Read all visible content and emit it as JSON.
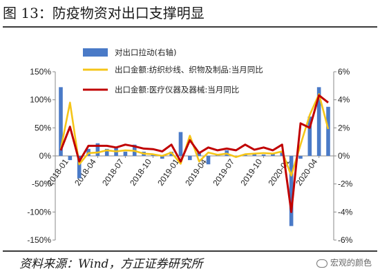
{
  "figure_title": "图 13：防疫物资对出口支撑明显",
  "source_note": "资料来源：Wind，方正证券研究所",
  "watermark": "宏观的颜色",
  "colors": {
    "bars": "#4a7ac7",
    "textile": "#f5c518",
    "medical": "#c00000"
  },
  "chart_data": {
    "type": "bar+line",
    "legend": [
      {
        "key": "bars",
        "label": "对出口拉动(右轴)"
      },
      {
        "key": "textile",
        "label": "出口金额:纺织纱线、织物及制品:当月同比"
      },
      {
        "key": "medical",
        "label": "出口金额:医疗仪器及器械:当月同比"
      }
    ],
    "legend_placement": "top",
    "left_axis": {
      "ylim": [
        -150,
        150
      ],
      "ticks": [
        "150%",
        "100%",
        "50%",
        "0%",
        "-50%",
        "-100%",
        "-150%"
      ]
    },
    "right_axis": {
      "ylim": [
        -6,
        6
      ],
      "ticks": [
        "6%",
        "4%",
        "2%",
        "0%",
        "-2%",
        "-4%",
        "-6%"
      ]
    },
    "x_ticks": [
      "2018-01",
      "2018-04",
      "2018-07",
      "2018-10",
      "2019-01",
      "2019-04",
      "2019-07",
      "2019-10",
      "2020-01",
      "2020-04"
    ],
    "months": [
      "2017-12",
      "2018-01",
      "2018-02",
      "2018-03",
      "2018-04",
      "2018-05",
      "2018-06",
      "2018-07",
      "2018-08",
      "2018-09",
      "2018-10",
      "2018-11",
      "2018-12",
      "2019-01",
      "2019-02",
      "2019-03",
      "2019-04",
      "2019-05",
      "2019-06",
      "2019-07",
      "2019-08",
      "2019-09",
      "2019-10",
      "2019-11",
      "2019-12",
      "2020-01",
      "2020-02",
      "2020-03",
      "2020-04",
      "2020-05"
    ],
    "series": [
      {
        "name": "对出口拉动(右轴)",
        "axis": "right",
        "render": "bar",
        "values": [
          4.9,
          -0.3,
          -1.6,
          0.5,
          0.9,
          0.5,
          0.6,
          0.3,
          0.8,
          0.3,
          0.1,
          -0.2,
          0.3,
          1.7,
          -0.3,
          0.3,
          -0.6,
          0.1,
          0.4,
          -0.1,
          0.1,
          0.2,
          0.1,
          0.2,
          0.3,
          -5.0,
          -0.2,
          2.8,
          4.9,
          3.5
        ]
      },
      {
        "name": "出口金额:纺织纱线、织物及制品:当月同比",
        "axis": "left",
        "render": "line",
        "values": [
          12,
          95,
          -15,
          5,
          6,
          10,
          8,
          10,
          9,
          4,
          3,
          0,
          6,
          -14,
          36,
          -10,
          6,
          2,
          4,
          -2,
          3,
          4,
          5,
          4,
          8,
          -35,
          20,
          73,
          110,
          48
        ]
      },
      {
        "name": "出口金额:医疗仪器及器械:当月同比",
        "axis": "left",
        "render": "line",
        "values": [
          10,
          52,
          -10,
          18,
          18,
          18,
          15,
          20,
          17,
          13,
          12,
          8,
          20,
          -10,
          28,
          5,
          15,
          10,
          13,
          10,
          20,
          11,
          15,
          10,
          20,
          -100,
          58,
          50,
          108,
          95
        ]
      }
    ]
  }
}
